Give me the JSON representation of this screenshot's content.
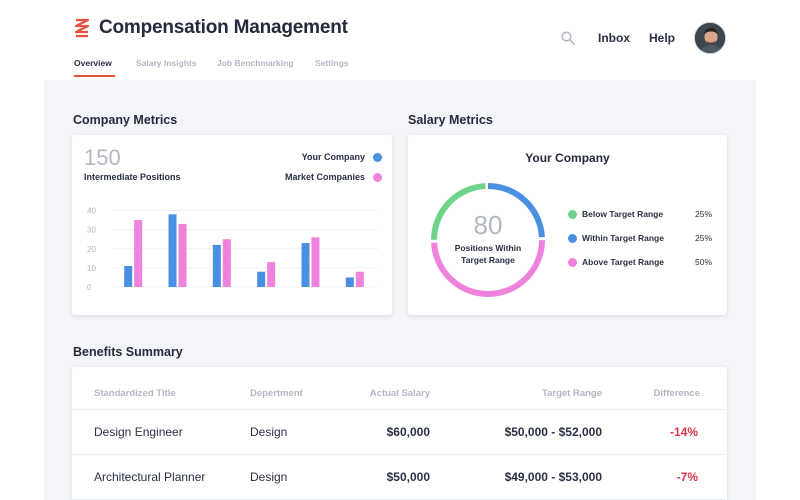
{
  "app": {
    "title": "Compensation Management"
  },
  "nav": {
    "inbox": "Inbox",
    "help": "Help",
    "search_icon": "search-icon"
  },
  "tabs": [
    {
      "label": "Overview",
      "active": true
    },
    {
      "label": "Salary Insights",
      "active": false
    },
    {
      "label": "Job Benchmarking",
      "active": false
    },
    {
      "label": "Settings",
      "active": false
    }
  ],
  "colors": {
    "accent": "#e5533e",
    "series_company": "#4a90e2",
    "series_market": "#ee82dc",
    "green": "#6fd389",
    "negative": "#e0334a"
  },
  "company_metrics": {
    "title": "Company Metrics",
    "big_number": "150",
    "subtitle": "Intermediate Positions",
    "legend": [
      {
        "label": "Your Company"
      },
      {
        "label": "Market Companies"
      }
    ]
  },
  "chart_data": {
    "type": "bar",
    "categories": [
      "",
      "",
      "",
      "",
      "",
      ""
    ],
    "series": [
      {
        "name": "Your Company",
        "values": [
          11,
          38,
          22,
          8,
          23,
          5
        ]
      },
      {
        "name": "Market Companies",
        "values": [
          35,
          33,
          25,
          13,
          26,
          8
        ]
      }
    ],
    "y_ticks": [
      "0",
      "10",
      "20",
      "30",
      "40"
    ],
    "ylim": [
      0,
      45
    ],
    "grid": true
  },
  "salary_metrics": {
    "title": "Salary Metrics",
    "card_title": "Your Company",
    "center_number": "80",
    "center_label": "Positions Within Target Range",
    "ranges": [
      {
        "label": "Below Target Range",
        "pct": "25%",
        "value": 25
      },
      {
        "label": "Within Target Range",
        "pct": "25%",
        "value": 25
      },
      {
        "label": "Above Target Range",
        "pct": "50%",
        "value": 50
      }
    ]
  },
  "benefits": {
    "title": "Benefits Summary",
    "headers": [
      "Standardized Title",
      "Depertment",
      "Actual Salary",
      "Target Range",
      "Difference"
    ],
    "rows": [
      [
        "Design Engineer",
        "Design",
        "$60,000",
        "$50,000 - $52,000",
        "-14%"
      ],
      [
        "Architectural Planner",
        "Design",
        "$50,000",
        "$49,000 - $53,000",
        "-7%"
      ]
    ]
  }
}
